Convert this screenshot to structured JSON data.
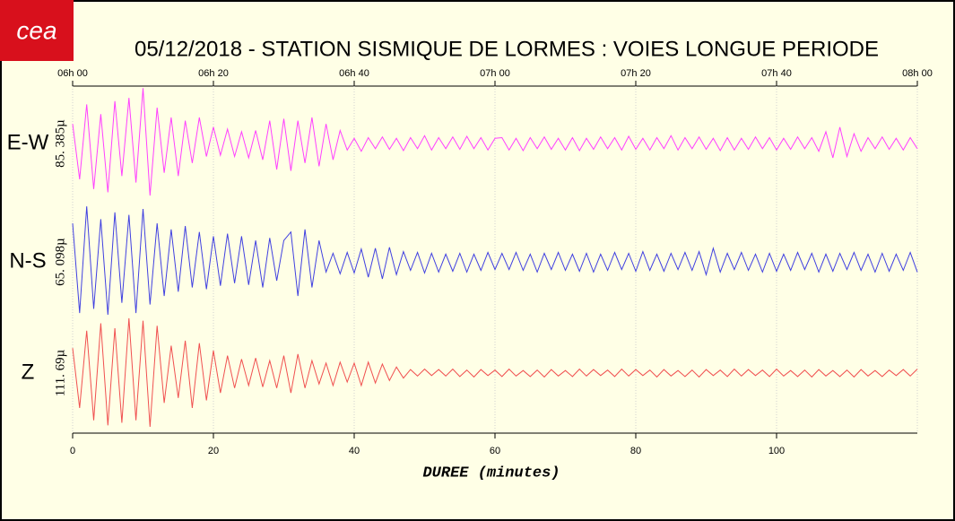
{
  "chart_data": {
    "type": "line",
    "logo": "cea",
    "title": "05/12/2018  -  STATION SISMIQUE DE LORMES : VOIES LONGUE PERIODE",
    "xlabel": "DUREE (minutes)",
    "xlim": [
      0,
      120
    ],
    "xticks": [
      0,
      20,
      40,
      60,
      80,
      100
    ],
    "x2ticks": [
      {
        "value": 0,
        "label": "06h 00"
      },
      {
        "value": 20,
        "label": "06h 20"
      },
      {
        "value": 40,
        "label": "06h 40"
      },
      {
        "value": 60,
        "label": "07h 00"
      },
      {
        "value": 80,
        "label": "07h 20"
      },
      {
        "value": 100,
        "label": "07h 40"
      },
      {
        "value": 120,
        "label": "08h 00"
      }
    ],
    "grid": true,
    "x": [
      0,
      1,
      2,
      3,
      4,
      5,
      6,
      7,
      8,
      9,
      10,
      11,
      12,
      13,
      14,
      15,
      16,
      17,
      18,
      19,
      20,
      21,
      22,
      23,
      24,
      25,
      26,
      27,
      28,
      29,
      30,
      31,
      32,
      33,
      34,
      35,
      36,
      37,
      38,
      39,
      40,
      41,
      42,
      43,
      44,
      45,
      46,
      47,
      48,
      49,
      50,
      51,
      52,
      53,
      54,
      55,
      56,
      57,
      58,
      59,
      60,
      61,
      62,
      63,
      64,
      65,
      66,
      67,
      68,
      69,
      70,
      71,
      72,
      73,
      74,
      75,
      76,
      77,
      78,
      79,
      80,
      81,
      82,
      83,
      84,
      85,
      86,
      87,
      88,
      89,
      90,
      91,
      92,
      93,
      94,
      95,
      96,
      97,
      98,
      99,
      100,
      101,
      102,
      103,
      104,
      105,
      106,
      107,
      108,
      109,
      110,
      111,
      112,
      113,
      114,
      115,
      116,
      117,
      118,
      119,
      120
    ],
    "series": [
      {
        "name": "E-W",
        "scale_label": "85. 385µ",
        "ylim": [
          -85.385,
          85.385
        ],
        "color": "#ff40ff",
        "values": [
          30,
          -55,
          60,
          -70,
          45,
          -75,
          65,
          -50,
          70,
          -60,
          85,
          -80,
          55,
          -45,
          40,
          -50,
          35,
          -30,
          40,
          -20,
          25,
          -18,
          22,
          -20,
          18,
          -22,
          20,
          -25,
          35,
          -40,
          38,
          -42,
          35,
          -30,
          40,
          -35,
          30,
          -25,
          20,
          -10,
          8,
          -12,
          9,
          -8,
          10,
          -9,
          8,
          -11,
          9,
          -8,
          12,
          -10,
          9,
          -8,
          10,
          -9,
          11,
          -8,
          9,
          -10,
          8,
          9,
          -10,
          8,
          -11,
          9,
          -8,
          10,
          -9,
          8,
          -10,
          9,
          -11,
          8,
          -9,
          10,
          -8,
          9,
          -10,
          11,
          -9,
          8,
          -10,
          9,
          -8,
          12,
          -10,
          9,
          -8,
          10,
          -9,
          8,
          -11,
          9,
          -10,
          8,
          -9,
          10,
          -8,
          9,
          -10,
          8,
          -9,
          10,
          -8,
          9,
          -12,
          18,
          -22,
          25,
          -20,
          15,
          -12,
          9,
          -8,
          10,
          -9,
          8,
          -10,
          9,
          -8
        ]
      },
      {
        "name": "N-S",
        "scale_label": "65. 098µ",
        "ylim": [
          -65.098,
          65.098
        ],
        "color": "#4040e0",
        "values": [
          45,
          -60,
          65,
          -55,
          50,
          -62,
          58,
          -48,
          55,
          -60,
          62,
          -50,
          45,
          -40,
          38,
          -35,
          42,
          -30,
          35,
          -32,
          30,
          -28,
          33,
          -25,
          30,
          -27,
          25,
          -30,
          28,
          -22,
          25,
          35,
          -40,
          38,
          -30,
          25,
          -12,
          10,
          -14,
          11,
          -13,
          15,
          -18,
          16,
          -20,
          17,
          -15,
          12,
          -10,
          11,
          -13,
          10,
          -12,
          9,
          -11,
          10,
          -12,
          9,
          -10,
          11,
          -9,
          10,
          -9,
          11,
          -10,
          9,
          -12,
          10,
          -9,
          11,
          -10,
          9,
          -11,
          10,
          -12,
          9,
          -10,
          11,
          -9,
          10,
          -11,
          12,
          -10,
          9,
          -11,
          10,
          -9,
          11,
          -10,
          12,
          -15,
          16,
          -12,
          10,
          -9,
          11,
          -10,
          9,
          -12,
          10,
          -11,
          9,
          -10,
          11,
          -9,
          10,
          -12,
          9,
          -11,
          10,
          -9,
          11,
          -10,
          9,
          -12,
          10,
          -11,
          9,
          -10,
          11,
          -12
        ]
      },
      {
        "name": "Z",
        "scale_label": "111. 69µ",
        "ylim": [
          -111.69,
          111.69
        ],
        "color": "#f05050",
        "values": [
          50,
          -70,
          85,
          -95,
          100,
          -105,
          90,
          -100,
          110,
          -95,
          105,
          -108,
          95,
          -60,
          55,
          -50,
          65,
          -70,
          60,
          -55,
          45,
          -40,
          35,
          -30,
          28,
          -25,
          30,
          -28,
          25,
          -30,
          35,
          -40,
          38,
          -30,
          25,
          -22,
          20,
          -25,
          22,
          -18,
          20,
          -25,
          22,
          -20,
          18,
          -15,
          12,
          -10,
          7,
          -6,
          8,
          -5,
          7,
          -6,
          8,
          -7,
          6,
          -8,
          7,
          -5,
          6,
          -7,
          8,
          -6,
          5,
          -7,
          6,
          -8,
          7,
          -6,
          5,
          -7,
          8,
          -6,
          7,
          -5,
          6,
          -7,
          8,
          -6,
          7,
          -5,
          6,
          -8,
          7,
          -6,
          5,
          -7,
          6,
          -8,
          7,
          -5,
          6,
          -7,
          8,
          -6,
          7,
          -5,
          6,
          -7,
          8,
          -6,
          5,
          -7,
          6,
          -8,
          7,
          -6,
          5,
          -7,
          6,
          -8,
          7,
          -6,
          5,
          -7,
          6,
          -5,
          7,
          -6,
          8
        ]
      }
    ]
  }
}
